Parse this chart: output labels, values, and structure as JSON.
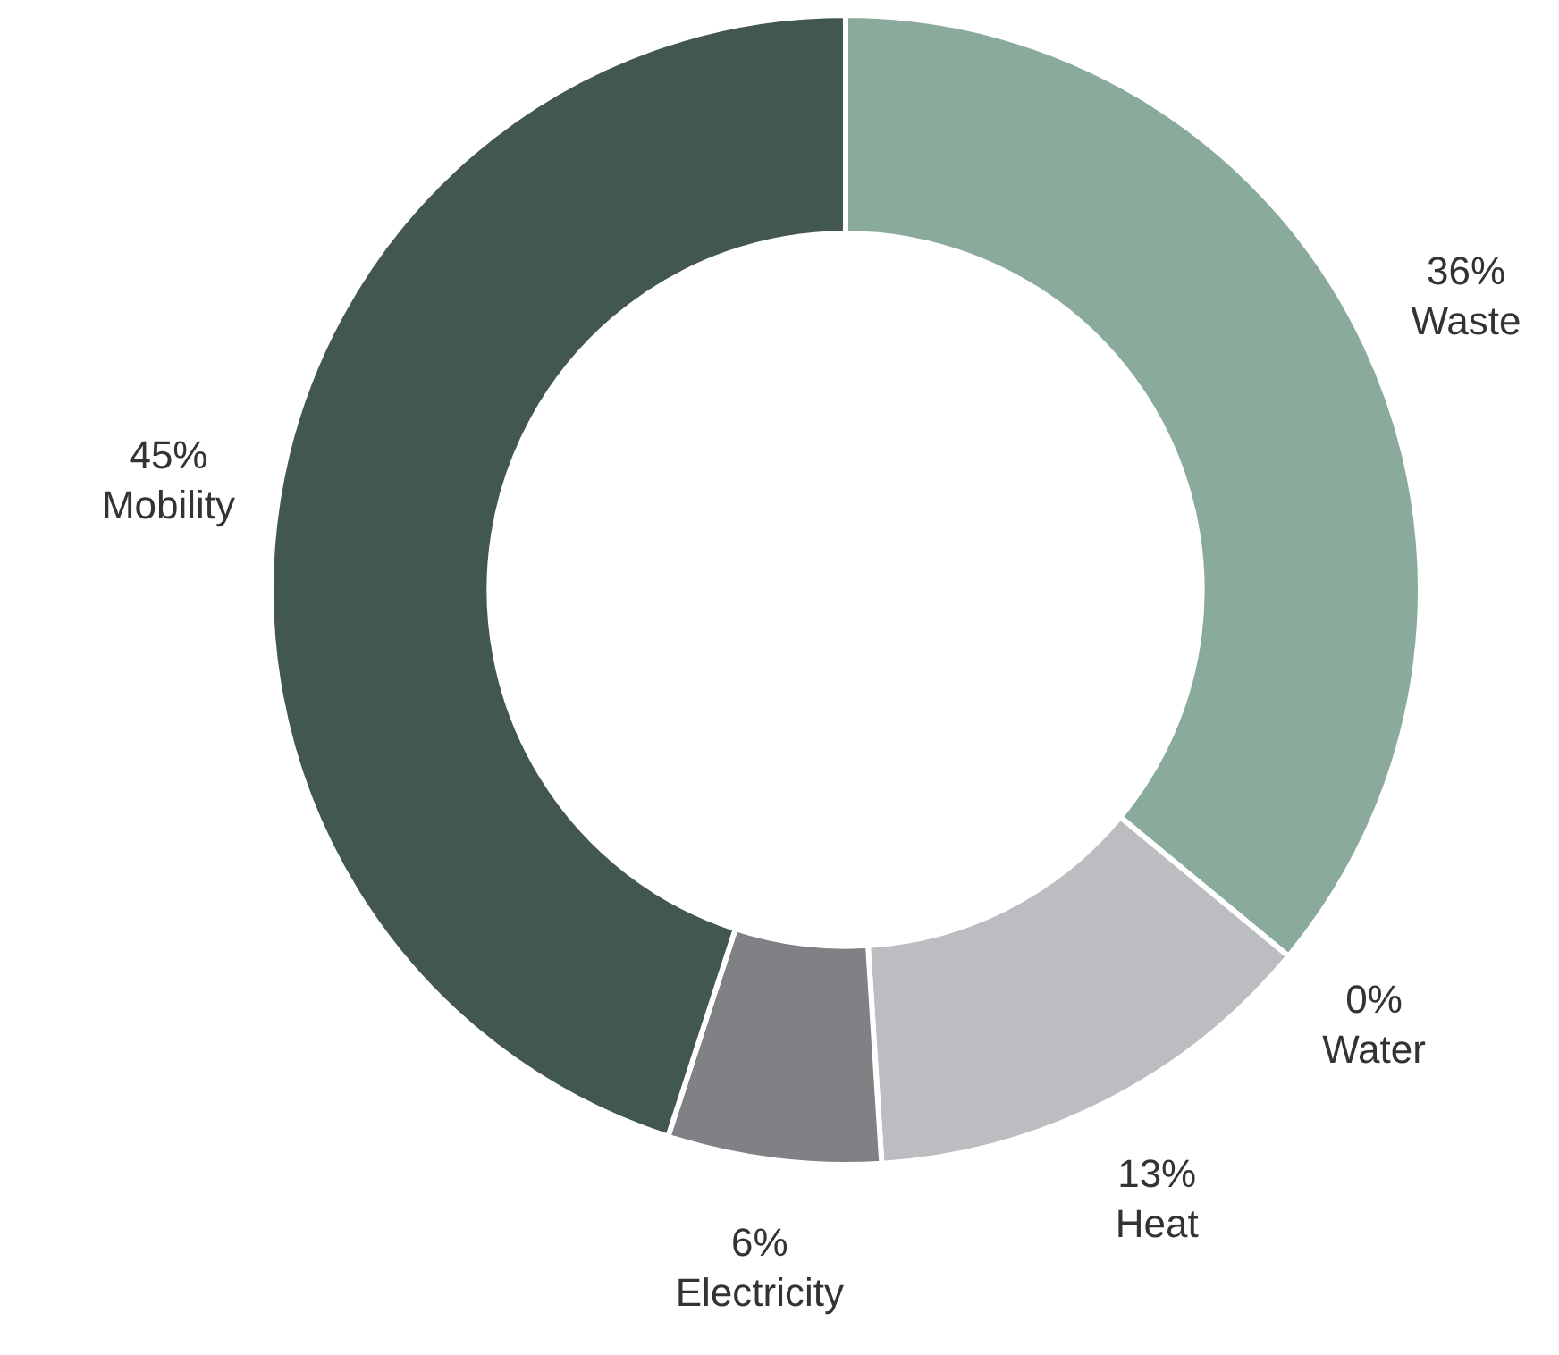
{
  "chart_data": {
    "type": "donut",
    "categories": [
      "Waste",
      "Water",
      "Heat",
      "Electricity",
      "Mobility"
    ],
    "values": [
      36,
      0,
      13,
      6,
      45
    ],
    "value_labels": [
      "36%",
      "0%",
      "13%",
      "6%",
      "45%"
    ],
    "colors": [
      "#8aab9c",
      "#9aa9a2",
      "#bcbdc1",
      "#808185",
      "#42574f"
    ],
    "legend": false
  }
}
